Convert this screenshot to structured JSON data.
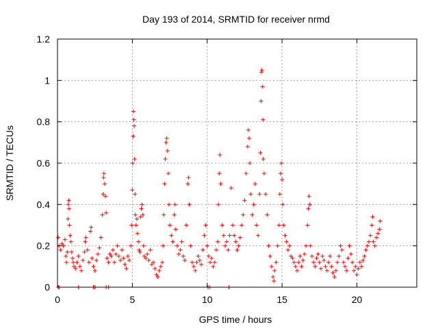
{
  "chart_data": {
    "type": "scatter",
    "title": "Day 193 of 2014, SRMTID for receiver nrmd",
    "xlabel": "GPS time / hours",
    "ylabel": "SRMTID / TECUs",
    "xlim": [
      0,
      24
    ],
    "ylim": [
      0,
      1.2
    ],
    "xticks": [
      0,
      5,
      10,
      15,
      20
    ],
    "xtick_labels": [
      "0",
      "5",
      "10",
      "15",
      "20"
    ],
    "yticks": [
      0,
      0.2,
      0.4,
      0.6,
      0.8,
      1,
      1.2
    ],
    "ytick_labels": [
      "0",
      "0.2",
      "0.4",
      "0.6",
      "0.8",
      "1",
      "1.2"
    ],
    "grid": true,
    "marker": "+",
    "color": "#ff0000",
    "series": [
      {
        "name": "SRMTID",
        "points": [
          [
            0.05,
            0.24
          ],
          [
            0.1,
            0.2
          ],
          [
            0.2,
            0.18
          ],
          [
            0.3,
            0.21
          ],
          [
            0.4,
            0.2
          ],
          [
            0.5,
            0.23
          ],
          [
            0.55,
            0.15
          ],
          [
            0.6,
            0.12
          ],
          [
            0.65,
            0.17
          ],
          [
            0.7,
            0.33
          ],
          [
            0.72,
            0.4
          ],
          [
            0.75,
            0.42
          ],
          [
            0.78,
            0.38
          ],
          [
            0.8,
            0.3
          ],
          [
            0.85,
            0.25
          ],
          [
            0.9,
            0.22
          ],
          [
            0.95,
            0.17
          ],
          [
            1.0,
            0.14
          ],
          [
            1.05,
            0.12
          ],
          [
            1.1,
            0.1
          ],
          [
            1.2,
            0.09
          ],
          [
            1.3,
            0.12
          ],
          [
            1.4,
            0.15
          ],
          [
            1.5,
            0.1
          ],
          [
            1.6,
            0.08
          ],
          [
            1.7,
            0.13
          ],
          [
            1.8,
            0.17
          ],
          [
            1.85,
            0.22
          ],
          [
            1.9,
            0.24
          ],
          [
            2.0,
            0.18
          ],
          [
            2.1,
            0.12
          ],
          [
            2.2,
            0.27
          ],
          [
            2.25,
            0.29
          ],
          [
            2.3,
            0.14
          ],
          [
            2.4,
            0.1
          ],
          [
            2.5,
            0.08
          ],
          [
            2.6,
            0.13
          ],
          [
            2.7,
            0.16
          ],
          [
            2.8,
            0.19
          ],
          [
            2.9,
            0.24
          ],
          [
            3.0,
            0.35
          ],
          [
            3.05,
            0.45
          ],
          [
            3.08,
            0.53
          ],
          [
            3.1,
            0.55
          ],
          [
            3.15,
            0.5
          ],
          [
            3.2,
            0.44
          ],
          [
            3.25,
            0.36
          ],
          [
            3.3,
            0.14
          ],
          [
            3.4,
            0.12
          ],
          [
            3.5,
            0.16
          ],
          [
            3.6,
            0.15
          ],
          [
            3.7,
            0.18
          ],
          [
            3.8,
            0.12
          ],
          [
            3.9,
            0.16
          ],
          [
            4.0,
            0.2
          ],
          [
            4.1,
            0.15
          ],
          [
            4.2,
            0.13
          ],
          [
            4.3,
            0.18
          ],
          [
            4.4,
            0.14
          ],
          [
            4.5,
            0.11
          ],
          [
            4.6,
            0.09
          ],
          [
            4.7,
            0.15
          ],
          [
            4.8,
            0.13
          ],
          [
            4.9,
            0.2
          ],
          [
            4.95,
            0.3
          ],
          [
            5.0,
            0.47
          ],
          [
            5.02,
            0.6
          ],
          [
            5.05,
            0.73
          ],
          [
            5.08,
            0.85
          ],
          [
            5.1,
            0.81
          ],
          [
            5.12,
            0.78
          ],
          [
            5.15,
            0.62
          ],
          [
            5.18,
            0.45
          ],
          [
            5.2,
            0.35
          ],
          [
            5.25,
            0.3
          ],
          [
            5.3,
            0.33
          ],
          [
            5.35,
            0.26
          ],
          [
            5.4,
            0.22
          ],
          [
            5.45,
            0.18
          ],
          [
            5.5,
            0.17
          ],
          [
            5.55,
            0.34
          ],
          [
            5.6,
            0.38
          ],
          [
            5.65,
            0.4
          ],
          [
            5.7,
            0.35
          ],
          [
            5.75,
            0.2
          ],
          [
            5.8,
            0.15
          ],
          [
            5.9,
            0.14
          ],
          [
            6.0,
            0.16
          ],
          [
            6.1,
            0.13
          ],
          [
            6.2,
            0.18
          ],
          [
            6.3,
            0.11
          ],
          [
            6.4,
            0.12
          ],
          [
            6.5,
            0.09
          ],
          [
            6.6,
            0.06
          ],
          [
            6.7,
            0.05
          ],
          [
            6.8,
            0.08
          ],
          [
            6.9,
            0.1
          ],
          [
            7.0,
            0.12
          ],
          [
            7.05,
            0.2
          ],
          [
            7.1,
            0.35
          ],
          [
            7.15,
            0.5
          ],
          [
            7.2,
            0.62
          ],
          [
            7.25,
            0.7
          ],
          [
            7.3,
            0.72
          ],
          [
            7.35,
            0.66
          ],
          [
            7.4,
            0.55
          ],
          [
            7.45,
            0.4
          ],
          [
            7.5,
            0.3
          ],
          [
            7.6,
            0.25
          ],
          [
            7.7,
            0.22
          ],
          [
            7.8,
            0.35
          ],
          [
            7.85,
            0.4
          ],
          [
            7.9,
            0.28
          ],
          [
            8.0,
            0.2
          ],
          [
            8.1,
            0.16
          ],
          [
            8.2,
            0.18
          ],
          [
            8.3,
            0.22
          ],
          [
            8.4,
            0.15
          ],
          [
            8.5,
            0.13
          ],
          [
            8.6,
            0.3
          ],
          [
            8.7,
            0.5
          ],
          [
            8.75,
            0.53
          ],
          [
            8.8,
            0.4
          ],
          [
            8.9,
            0.2
          ],
          [
            9.0,
            0.12
          ],
          [
            9.1,
            0.1
          ],
          [
            9.2,
            0.08
          ],
          [
            9.3,
            0.12
          ],
          [
            9.4,
            0.15
          ],
          [
            9.5,
            0.13
          ],
          [
            9.6,
            0.11
          ],
          [
            9.7,
            0.18
          ],
          [
            9.8,
            0.25
          ],
          [
            9.9,
            0.3
          ],
          [
            10.0,
            0.2
          ],
          [
            10.1,
            0.15
          ],
          [
            10.2,
            0.12
          ],
          [
            10.3,
            0.14
          ],
          [
            10.4,
            0.1
          ],
          [
            10.5,
            0.12
          ],
          [
            10.6,
            0.18
          ],
          [
            10.7,
            0.22
          ],
          [
            10.75,
            0.4
          ],
          [
            10.8,
            0.55
          ],
          [
            10.85,
            0.64
          ],
          [
            10.9,
            0.5
          ],
          [
            11.0,
            0.3
          ],
          [
            11.1,
            0.25
          ],
          [
            11.2,
            0.2
          ],
          [
            11.3,
            0.22
          ],
          [
            11.4,
            0.18
          ],
          [
            11.5,
            0.25
          ],
          [
            11.6,
            0.48
          ],
          [
            11.7,
            0.3
          ],
          [
            11.8,
            0.25
          ],
          [
            11.9,
            0.22
          ],
          [
            12.0,
            0.18
          ],
          [
            12.1,
            0.2
          ],
          [
            12.2,
            0.24
          ],
          [
            12.3,
            0.3
          ],
          [
            12.4,
            0.35
          ],
          [
            12.5,
            0.42
          ],
          [
            12.6,
            0.55
          ],
          [
            12.7,
            0.68
          ],
          [
            12.75,
            0.76
          ],
          [
            12.8,
            0.72
          ],
          [
            12.85,
            0.6
          ],
          [
            12.9,
            0.45
          ],
          [
            13.0,
            0.35
          ],
          [
            13.1,
            0.4
          ],
          [
            13.2,
            0.5
          ],
          [
            13.3,
            0.3
          ],
          [
            13.4,
            0.25
          ],
          [
            13.5,
            0.45
          ],
          [
            13.55,
            0.65
          ],
          [
            13.6,
            0.9
          ],
          [
            13.62,
            1.04
          ],
          [
            13.65,
            1.05
          ],
          [
            13.7,
            0.97
          ],
          [
            13.72,
            0.81
          ],
          [
            13.75,
            0.62
          ],
          [
            13.8,
            0.55
          ],
          [
            13.9,
            0.45
          ],
          [
            14.0,
            0.35
          ],
          [
            14.1,
            0.2
          ],
          [
            14.2,
            0.15
          ],
          [
            14.3,
            0.1
          ],
          [
            14.4,
            0.05
          ],
          [
            14.45,
            0.03
          ],
          [
            14.5,
            0.08
          ],
          [
            14.6,
            0.12
          ],
          [
            14.7,
            0.2
          ],
          [
            14.8,
            0.3
          ],
          [
            14.85,
            0.45
          ],
          [
            14.9,
            0.55
          ],
          [
            14.95,
            0.6
          ],
          [
            15.0,
            0.52
          ],
          [
            15.05,
            0.4
          ],
          [
            15.1,
            0.3
          ],
          [
            15.2,
            0.25
          ],
          [
            15.3,
            0.22
          ],
          [
            15.4,
            0.18
          ],
          [
            15.5,
            0.2
          ],
          [
            15.6,
            0.15
          ],
          [
            15.7,
            0.14
          ],
          [
            15.8,
            0.12
          ],
          [
            15.9,
            0.1
          ],
          [
            16.0,
            0.08
          ],
          [
            16.1,
            0.12
          ],
          [
            16.2,
            0.15
          ],
          [
            16.3,
            0.1
          ],
          [
            16.4,
            0.13
          ],
          [
            16.5,
            0.16
          ],
          [
            16.6,
            0.2
          ],
          [
            16.7,
            0.3
          ],
          [
            16.75,
            0.38
          ],
          [
            16.8,
            0.44
          ],
          [
            16.85,
            0.4
          ],
          [
            16.9,
            0.2
          ],
          [
            17.0,
            0.15
          ],
          [
            17.1,
            0.12
          ],
          [
            17.2,
            0.1
          ],
          [
            17.3,
            0.14
          ],
          [
            17.4,
            0.16
          ],
          [
            17.5,
            0.12
          ],
          [
            17.6,
            0.09
          ],
          [
            17.7,
            0.15
          ],
          [
            17.8,
            0.13
          ],
          [
            17.9,
            0.1
          ],
          [
            18.0,
            0.08
          ],
          [
            18.1,
            0.12
          ],
          [
            18.2,
            0.15
          ],
          [
            18.3,
            0.1
          ],
          [
            18.4,
            0.07
          ],
          [
            18.5,
            0.05
          ],
          [
            18.6,
            0.08
          ],
          [
            18.7,
            0.12
          ],
          [
            18.8,
            0.15
          ],
          [
            18.9,
            0.2
          ],
          [
            19.0,
            0.18
          ],
          [
            19.1,
            0.12
          ],
          [
            19.2,
            0.1
          ],
          [
            19.3,
            0.08
          ],
          [
            19.4,
            0.14
          ],
          [
            19.5,
            0.2
          ],
          [
            19.6,
            0.16
          ],
          [
            19.7,
            0.12
          ],
          [
            19.8,
            0.08
          ],
          [
            19.9,
            0.1
          ],
          [
            20.0,
            0.06
          ],
          [
            20.1,
            0.09
          ],
          [
            20.2,
            0.12
          ],
          [
            20.3,
            0.1
          ],
          [
            20.4,
            0.13
          ],
          [
            20.5,
            0.15
          ],
          [
            20.6,
            0.18
          ],
          [
            20.7,
            0.2
          ],
          [
            20.8,
            0.22
          ],
          [
            20.9,
            0.25
          ],
          [
            21.0,
            0.3
          ],
          [
            21.05,
            0.34
          ],
          [
            21.1,
            0.22
          ],
          [
            21.2,
            0.2
          ],
          [
            21.3,
            0.24
          ],
          [
            21.4,
            0.26
          ],
          [
            21.5,
            0.28
          ],
          [
            21.55,
            0.32
          ]
        ],
        "zero_points": [
          0.05,
          0.1,
          1.4,
          2.4,
          2.5,
          3.25,
          3.4,
          10.05,
          10.15,
          11.45
        ]
      }
    ]
  }
}
